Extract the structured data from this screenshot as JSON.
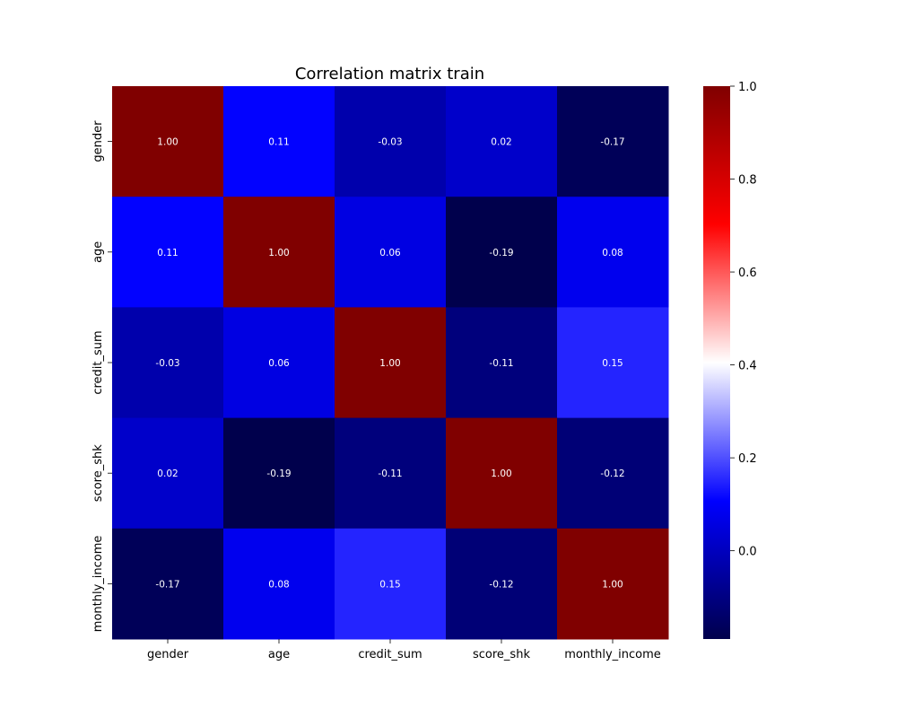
{
  "chart_data": {
    "type": "heatmap",
    "title": "Correlation matrix train",
    "x_labels": [
      "gender",
      "age",
      "credit_sum",
      "score_shk",
      "monthly_income"
    ],
    "y_labels": [
      "gender",
      "age",
      "credit_sum",
      "score_shk",
      "monthly_income"
    ],
    "values": [
      [
        1.0,
        0.11,
        -0.03,
        0.02,
        -0.17
      ],
      [
        0.11,
        1.0,
        0.06,
        -0.19,
        0.08
      ],
      [
        -0.03,
        0.06,
        1.0,
        -0.11,
        0.15
      ],
      [
        0.02,
        -0.19,
        -0.11,
        1.0,
        -0.12
      ],
      [
        -0.17,
        0.08,
        0.15,
        -0.12,
        1.0
      ]
    ],
    "cell_labels": [
      [
        "1.00",
        "0.11",
        "-0.03",
        "0.02",
        "-0.17"
      ],
      [
        "0.11",
        "1.00",
        "0.06",
        "-0.19",
        "0.08"
      ],
      [
        "-0.03",
        "0.06",
        "1.00",
        "-0.11",
        "0.15"
      ],
      [
        "0.02",
        "-0.19",
        "-0.11",
        "1.00",
        "-0.12"
      ],
      [
        "-0.17",
        "0.08",
        "0.15",
        "-0.12",
        "1.00"
      ]
    ],
    "colormap": "seismic",
    "colorbar": {
      "vmin": -0.19,
      "vmax": 1.0,
      "ticks": [
        0.0,
        0.2,
        0.4,
        0.6,
        0.8,
        1.0
      ],
      "tick_labels": [
        "0.0",
        "0.2",
        "0.4",
        "0.6",
        "0.8",
        "1.0"
      ]
    },
    "grid": false,
    "legend": "colorbar-right"
  }
}
